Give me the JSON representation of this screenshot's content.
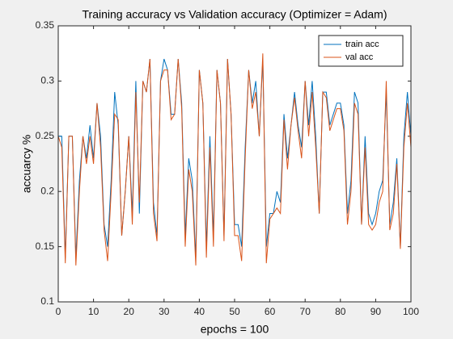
{
  "chart_data": {
    "type": "line",
    "title": "Training accuracy vs Validation accuracy (Optimizer = Adam)",
    "x_label": "epochs = 100",
    "y_label": "accuarcy %",
    "xlim": [
      0,
      100
    ],
    "xticks": [
      0,
      10,
      20,
      30,
      40,
      50,
      60,
      70,
      80,
      90,
      100
    ],
    "ylim": [
      0.1,
      0.35
    ],
    "yticks": [
      0.1,
      0.15,
      0.2,
      0.25,
      0.3,
      0.35
    ],
    "legend": "northeast",
    "x": [
      0,
      1,
      2,
      3,
      4,
      5,
      6,
      7,
      8,
      9,
      10,
      11,
      12,
      13,
      14,
      15,
      16,
      17,
      18,
      19,
      20,
      21,
      22,
      23,
      24,
      25,
      26,
      27,
      28,
      29,
      30,
      31,
      32,
      33,
      34,
      35,
      36,
      37,
      38,
      39,
      40,
      41,
      42,
      43,
      44,
      45,
      46,
      47,
      48,
      49,
      50,
      51,
      52,
      53,
      54,
      55,
      56,
      57,
      58,
      59,
      60,
      61,
      62,
      63,
      64,
      65,
      66,
      67,
      68,
      69,
      70,
      71,
      72,
      73,
      74,
      75,
      76,
      77,
      78,
      79,
      80,
      81,
      82,
      83,
      84,
      85,
      86,
      87,
      88,
      89,
      90,
      91,
      92,
      93,
      94,
      95,
      96,
      97,
      98,
      99,
      100
    ],
    "series": [
      {
        "name": "train acc",
        "color": "#0072bd",
        "values": [
          0.25,
          0.25,
          0.14,
          0.25,
          0.25,
          0.14,
          0.21,
          0.25,
          0.23,
          0.26,
          0.23,
          0.28,
          0.25,
          0.17,
          0.15,
          0.21,
          0.29,
          0.26,
          0.16,
          0.2,
          0.25,
          0.18,
          0.3,
          0.18,
          0.3,
          0.29,
          0.32,
          0.19,
          0.16,
          0.3,
          0.32,
          0.31,
          0.27,
          0.27,
          0.32,
          0.28,
          0.16,
          0.23,
          0.21,
          0.14,
          0.31,
          0.28,
          0.15,
          0.25,
          0.16,
          0.31,
          0.28,
          0.16,
          0.32,
          0.27,
          0.17,
          0.17,
          0.15,
          0.24,
          0.31,
          0.28,
          0.3,
          0.25,
          0.32,
          0.15,
          0.18,
          0.18,
          0.2,
          0.19,
          0.27,
          0.23,
          0.26,
          0.29,
          0.26,
          0.24,
          0.3,
          0.26,
          0.3,
          0.25,
          0.18,
          0.29,
          0.29,
          0.26,
          0.27,
          0.28,
          0.28,
          0.26,
          0.18,
          0.21,
          0.29,
          0.28,
          0.17,
          0.25,
          0.18,
          0.17,
          0.18,
          0.2,
          0.21,
          0.29,
          0.17,
          0.19,
          0.23,
          0.15,
          0.25,
          0.29,
          0.25
        ]
      },
      {
        "name": "val acc",
        "color": "#d95319",
        "values": [
          0.25,
          0.24,
          0.135,
          0.25,
          0.25,
          0.133,
          0.2,
          0.25,
          0.225,
          0.25,
          0.225,
          0.28,
          0.24,
          0.165,
          0.137,
          0.2,
          0.27,
          0.265,
          0.16,
          0.2,
          0.25,
          0.17,
          0.29,
          0.19,
          0.3,
          0.29,
          0.32,
          0.18,
          0.155,
          0.3,
          0.31,
          0.31,
          0.265,
          0.27,
          0.32,
          0.275,
          0.15,
          0.22,
          0.2,
          0.133,
          0.31,
          0.28,
          0.14,
          0.24,
          0.15,
          0.31,
          0.28,
          0.155,
          0.32,
          0.27,
          0.16,
          0.16,
          0.137,
          0.23,
          0.31,
          0.275,
          0.29,
          0.25,
          0.325,
          0.135,
          0.175,
          0.18,
          0.185,
          0.18,
          0.265,
          0.22,
          0.26,
          0.285,
          0.255,
          0.23,
          0.3,
          0.25,
          0.29,
          0.24,
          0.18,
          0.29,
          0.285,
          0.255,
          0.265,
          0.275,
          0.275,
          0.255,
          0.17,
          0.2,
          0.28,
          0.27,
          0.17,
          0.24,
          0.17,
          0.165,
          0.17,
          0.19,
          0.2,
          0.3,
          0.165,
          0.18,
          0.225,
          0.148,
          0.24,
          0.28,
          0.24
        ]
      }
    ]
  }
}
